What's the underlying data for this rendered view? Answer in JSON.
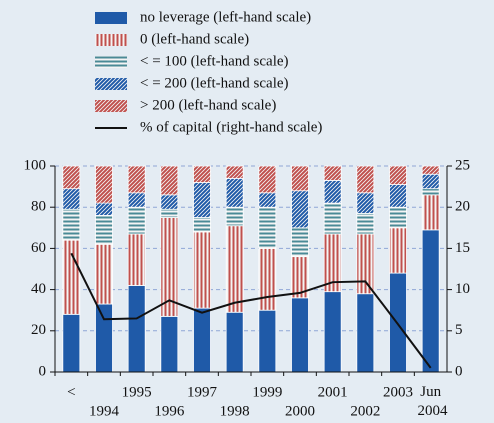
{
  "chart_data": {
    "type": "bar",
    "stacked": true,
    "categories": [
      "<",
      "1994",
      "1995",
      "1996",
      "1997",
      "1998",
      "1999",
      "2000",
      "2001",
      "2002",
      "2003",
      "Jun 2004"
    ],
    "series": [
      {
        "name": "no leverage (left-hand scale)",
        "color": "#1f5aa8",
        "hatch": "solid",
        "values": [
          28,
          33,
          42,
          27,
          31,
          29,
          30,
          36,
          39,
          38,
          48,
          69
        ]
      },
      {
        "name": "0  (left-hand scale)",
        "color": "#c0504d",
        "hatch": "vertical",
        "values": [
          36,
          29,
          25,
          48,
          37,
          42,
          30,
          20,
          28,
          29,
          22,
          17
        ]
      },
      {
        "name": "< = 100 (left-hand scale)",
        "color": "#4a8a96",
        "hatch": "horizontal",
        "values": [
          15,
          14,
          13,
          4,
          7,
          9,
          20,
          14,
          15,
          10,
          10,
          3
        ]
      },
      {
        "name": "< = 200 (left-hand scale)",
        "color": "#1f5aa8",
        "hatch": "diagonal",
        "values": [
          10,
          6,
          7,
          7,
          17,
          14,
          7,
          18,
          11,
          10,
          11,
          7
        ]
      },
      {
        "name": "> 200 (left-hand scale)",
        "color": "#c0504d",
        "hatch": "diagonal",
        "values": [
          11,
          18,
          13,
          14,
          8,
          6,
          13,
          12,
          7,
          13,
          9,
          4
        ]
      },
      {
        "name": "% of capital (right-hand scale)",
        "color": "#111111",
        "type": "line",
        "axis": "y2",
        "values": [
          14.4,
          6.4,
          6.5,
          8.7,
          7.2,
          8.4,
          9.1,
          9.6,
          10.9,
          11,
          5.8,
          0.5
        ]
      }
    ],
    "ylim": [
      0,
      100
    ],
    "yticks": [
      0,
      20,
      40,
      60,
      80,
      100
    ],
    "y2lim": [
      0,
      25
    ],
    "y2ticks": [
      0,
      5,
      10,
      15,
      20,
      25
    ],
    "grid": true
  }
}
